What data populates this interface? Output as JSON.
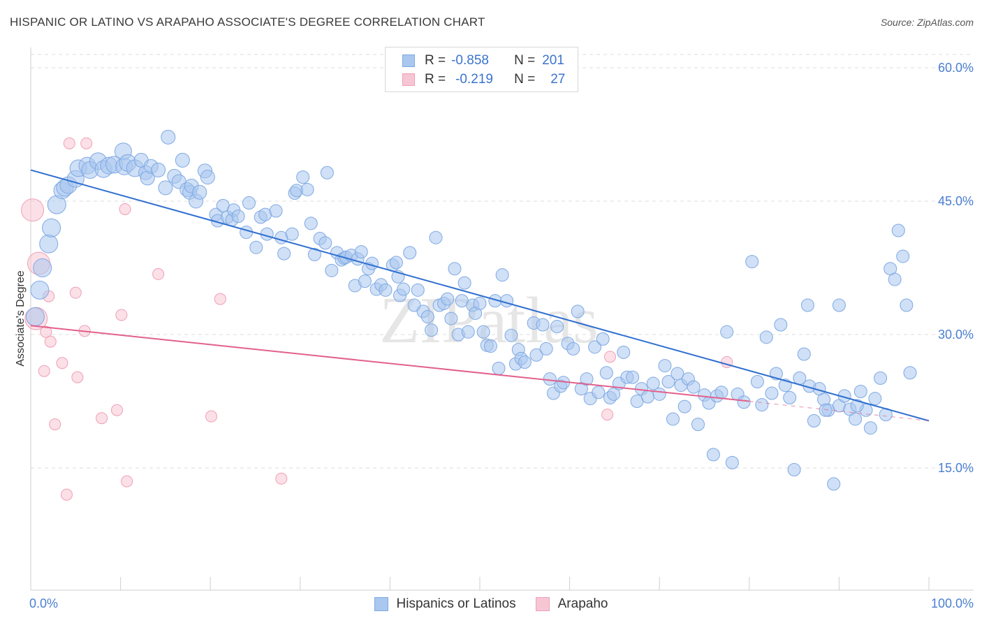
{
  "title": "HISPANIC OR LATINO VS ARAPAHO ASSOCIATE'S DEGREE CORRELATION CHART",
  "source": "Source: ZipAtlas.com",
  "watermark": "ZIPatlas",
  "colors": {
    "blue_fill": "#a9c7ef",
    "blue_stroke": "#7ea9e3",
    "blue_line": "#2f6fd0",
    "pink_fill": "#f7c6d4",
    "pink_stroke": "#ef9fb6",
    "pink_line": "#e2608c",
    "grid": "#dcdcdc",
    "tick_text": "#4a7fd0"
  },
  "legend_top": {
    "rows": [
      {
        "r_label": "R =",
        "r_value": "-0.858",
        "n_label": "N =",
        "n_value": "201",
        "color": "blue"
      },
      {
        "r_label": "R =",
        "r_value": "-0.219",
        "n_label": "N =",
        "n_value": "27",
        "color": "pink"
      }
    ]
  },
  "legend_bottom": {
    "items": [
      {
        "label": "Hispanics or Latinos",
        "color": "blue"
      },
      {
        "label": "Arapaho",
        "color": "pink"
      }
    ]
  },
  "chart_data": {
    "type": "scatter",
    "title": "HISPANIC OR LATINO VS ARAPAHO ASSOCIATE'S DEGREE CORRELATION CHART",
    "xlabel": "",
    "ylabel": "Associate's Degree",
    "xlim": [
      0,
      100
    ],
    "ylim": [
      0,
      65
    ],
    "x_tick_labels": [
      "0.0%",
      "100.0%"
    ],
    "y_ticks": [
      15,
      30,
      45,
      60
    ],
    "y_tick_labels": [
      "15.0%",
      "30.0%",
      "45.0%",
      "60.0%"
    ],
    "grid": "horizontal dashed",
    "series": [
      {
        "name": "Hispanics or Latinos",
        "color": "blue",
        "r": -0.858,
        "n": 201,
        "trend": {
          "x": [
            0,
            100
          ],
          "y": [
            48.5,
            20.3
          ]
        },
        "points": [
          [
            0.5,
            32.0
          ],
          [
            1.0,
            35.0
          ],
          [
            1.3,
            37.5
          ],
          [
            2.0,
            40.2
          ],
          [
            2.3,
            42.0
          ],
          [
            2.9,
            44.6
          ],
          [
            3.5,
            46.2
          ],
          [
            3.8,
            46.5
          ],
          [
            4.2,
            46.8
          ],
          [
            5.0,
            47.5
          ],
          [
            5.3,
            48.7
          ],
          [
            6.3,
            49.0
          ],
          [
            6.6,
            48.5
          ],
          [
            7.5,
            49.5
          ],
          [
            8.1,
            48.6
          ],
          [
            8.7,
            49.0
          ],
          [
            9.3,
            49.1
          ],
          [
            10.4,
            48.9
          ],
          [
            10.3,
            50.6
          ],
          [
            10.8,
            49.3
          ],
          [
            11.6,
            48.7
          ],
          [
            12.3,
            49.6
          ],
          [
            12.8,
            48.2
          ],
          [
            13.0,
            47.6
          ],
          [
            13.4,
            48.9
          ],
          [
            14.2,
            48.5
          ],
          [
            15.0,
            46.5
          ],
          [
            15.3,
            52.2
          ],
          [
            16.0,
            47.8
          ],
          [
            16.5,
            47.2
          ],
          [
            16.9,
            49.6
          ],
          [
            17.4,
            46.3
          ],
          [
            17.7,
            46.0
          ],
          [
            17.9,
            46.7
          ],
          [
            18.4,
            45.0
          ],
          [
            18.8,
            46.0
          ],
          [
            19.4,
            48.4
          ],
          [
            19.7,
            47.7
          ],
          [
            20.6,
            43.5
          ],
          [
            20.8,
            42.8
          ],
          [
            21.4,
            44.5
          ],
          [
            21.9,
            43.2
          ],
          [
            22.4,
            42.9
          ],
          [
            22.6,
            44.0
          ],
          [
            23.1,
            43.3
          ],
          [
            24.0,
            41.5
          ],
          [
            24.3,
            44.8
          ],
          [
            25.1,
            39.8
          ],
          [
            25.6,
            43.2
          ],
          [
            26.1,
            43.5
          ],
          [
            26.3,
            41.3
          ],
          [
            27.3,
            43.9
          ],
          [
            27.9,
            40.9
          ],
          [
            28.2,
            39.1
          ],
          [
            29.1,
            41.3
          ],
          [
            29.4,
            45.9
          ],
          [
            29.6,
            46.2
          ],
          [
            30.3,
            47.7
          ],
          [
            30.8,
            46.3
          ],
          [
            31.2,
            42.5
          ],
          [
            31.6,
            39.0
          ],
          [
            32.2,
            40.8
          ],
          [
            32.8,
            40.3
          ],
          [
            33.0,
            48.2
          ],
          [
            33.5,
            37.2
          ],
          [
            34.1,
            39.2
          ],
          [
            34.6,
            38.4
          ],
          [
            34.9,
            38.6
          ],
          [
            35.1,
            38.7
          ],
          [
            35.7,
            38.9
          ],
          [
            36.1,
            35.5
          ],
          [
            36.4,
            38.5
          ],
          [
            36.8,
            39.3
          ],
          [
            37.2,
            36.0
          ],
          [
            37.6,
            37.4
          ],
          [
            38.0,
            38.0
          ],
          [
            38.5,
            35.1
          ],
          [
            39.0,
            35.6
          ],
          [
            39.5,
            35.0
          ],
          [
            40.3,
            37.8
          ],
          [
            40.7,
            38.1
          ],
          [
            40.9,
            36.5
          ],
          [
            41.1,
            34.4
          ],
          [
            41.5,
            35.1
          ],
          [
            42.2,
            39.2
          ],
          [
            42.7,
            33.3
          ],
          [
            43.1,
            35.0
          ],
          [
            43.7,
            32.6
          ],
          [
            44.2,
            32.0
          ],
          [
            44.6,
            30.5
          ],
          [
            45.1,
            40.9
          ],
          [
            45.5,
            33.3
          ],
          [
            46.0,
            33.5
          ],
          [
            46.4,
            34.0
          ],
          [
            46.8,
            31.8
          ],
          [
            47.2,
            37.4
          ],
          [
            47.6,
            30.0
          ],
          [
            48.0,
            33.8
          ],
          [
            48.3,
            35.8
          ],
          [
            48.7,
            30.3
          ],
          [
            49.2,
            33.3
          ],
          [
            49.5,
            32.4
          ],
          [
            50.0,
            33.5
          ],
          [
            50.4,
            30.3
          ],
          [
            50.8,
            28.8
          ],
          [
            51.2,
            28.7
          ],
          [
            51.7,
            33.8
          ],
          [
            52.1,
            26.2
          ],
          [
            52.5,
            36.7
          ],
          [
            53.0,
            33.8
          ],
          [
            53.5,
            29.9
          ],
          [
            54.0,
            26.7
          ],
          [
            54.3,
            28.3
          ],
          [
            54.6,
            27.3
          ],
          [
            55.0,
            26.9
          ],
          [
            56.0,
            31.3
          ],
          [
            56.3,
            27.7
          ],
          [
            57.0,
            31.1
          ],
          [
            57.4,
            28.4
          ],
          [
            57.8,
            25.0
          ],
          [
            58.2,
            23.4
          ],
          [
            58.6,
            30.9
          ],
          [
            59.0,
            24.2
          ],
          [
            59.3,
            24.6
          ],
          [
            59.8,
            29.0
          ],
          [
            60.4,
            28.4
          ],
          [
            60.9,
            32.6
          ],
          [
            61.3,
            23.9
          ],
          [
            61.9,
            25.0
          ],
          [
            62.3,
            22.8
          ],
          [
            62.8,
            28.6
          ],
          [
            63.2,
            23.5
          ],
          [
            63.7,
            29.5
          ],
          [
            64.1,
            25.7
          ],
          [
            64.5,
            22.9
          ],
          [
            64.9,
            23.3
          ],
          [
            65.5,
            24.5
          ],
          [
            66.0,
            28.0
          ],
          [
            66.4,
            25.2
          ],
          [
            67.0,
            25.2
          ],
          [
            67.5,
            22.5
          ],
          [
            68.0,
            23.9
          ],
          [
            68.7,
            23.0
          ],
          [
            69.3,
            24.5
          ],
          [
            70.0,
            23.3
          ],
          [
            70.6,
            26.5
          ],
          [
            71.0,
            24.7
          ],
          [
            71.5,
            20.5
          ],
          [
            72.0,
            25.6
          ],
          [
            72.4,
            24.3
          ],
          [
            72.8,
            21.9
          ],
          [
            73.2,
            25.0
          ],
          [
            73.8,
            24.1
          ],
          [
            74.3,
            19.9
          ],
          [
            75.0,
            23.2
          ],
          [
            75.5,
            22.3
          ],
          [
            76.0,
            16.5
          ],
          [
            76.4,
            23.1
          ],
          [
            76.9,
            23.5
          ],
          [
            77.5,
            30.3
          ],
          [
            78.1,
            15.6
          ],
          [
            78.7,
            23.3
          ],
          [
            79.4,
            22.4
          ],
          [
            80.3,
            38.2
          ],
          [
            80.9,
            24.7
          ],
          [
            81.4,
            22.1
          ],
          [
            81.9,
            29.7
          ],
          [
            82.5,
            23.4
          ],
          [
            83.0,
            25.6
          ],
          [
            83.5,
            31.1
          ],
          [
            84.0,
            24.3
          ],
          [
            84.5,
            22.9
          ],
          [
            85.0,
            14.8
          ],
          [
            85.6,
            25.1
          ],
          [
            86.1,
            27.8
          ],
          [
            86.7,
            24.2
          ],
          [
            87.2,
            20.3
          ],
          [
            87.8,
            23.9
          ],
          [
            88.3,
            22.7
          ],
          [
            88.8,
            21.5
          ],
          [
            89.4,
            13.2
          ],
          [
            90.0,
            22.0
          ],
          [
            90.6,
            23.1
          ],
          [
            91.2,
            21.6
          ],
          [
            91.8,
            20.5
          ],
          [
            92.4,
            23.6
          ],
          [
            93.0,
            21.5
          ],
          [
            93.5,
            19.5
          ],
          [
            94.0,
            22.8
          ],
          [
            94.6,
            25.1
          ],
          [
            95.2,
            21.0
          ],
          [
            95.7,
            37.4
          ],
          [
            96.2,
            36.2
          ],
          [
            96.6,
            41.7
          ],
          [
            97.1,
            38.8
          ],
          [
            97.5,
            33.3
          ],
          [
            97.9,
            25.7
          ],
          [
            86.5,
            33.3
          ],
          [
            88.5,
            21.5
          ],
          [
            90.0,
            33.3
          ],
          [
            92.0,
            22.0
          ]
        ]
      },
      {
        "name": "Arapaho",
        "color": "pink",
        "r": -0.219,
        "n": 27,
        "trend": {
          "x": [
            0,
            80
          ],
          "y": [
            31.0,
            22.5
          ]
        },
        "trend_extension": {
          "x": [
            80,
            100
          ],
          "y": [
            22.5,
            20.3
          ]
        },
        "points": [
          [
            0.2,
            44.0
          ],
          [
            0.6,
            31.8
          ],
          [
            0.9,
            38.0
          ],
          [
            1.5,
            25.9
          ],
          [
            1.7,
            30.3
          ],
          [
            2.0,
            34.3
          ],
          [
            2.2,
            29.2
          ],
          [
            2.7,
            19.9
          ],
          [
            3.5,
            26.8
          ],
          [
            4.0,
            12.0
          ],
          [
            4.3,
            51.5
          ],
          [
            5.0,
            34.7
          ],
          [
            5.2,
            25.2
          ],
          [
            6.0,
            30.4
          ],
          [
            6.2,
            51.5
          ],
          [
            7.9,
            20.6
          ],
          [
            9.6,
            21.5
          ],
          [
            10.1,
            32.2
          ],
          [
            10.5,
            44.1
          ],
          [
            10.7,
            13.5
          ],
          [
            14.2,
            36.8
          ],
          [
            20.1,
            20.8
          ],
          [
            21.1,
            34.0
          ],
          [
            27.9,
            13.8
          ],
          [
            64.5,
            27.5
          ],
          [
            64.2,
            21.0
          ],
          [
            77.5,
            26.9
          ]
        ]
      }
    ]
  }
}
